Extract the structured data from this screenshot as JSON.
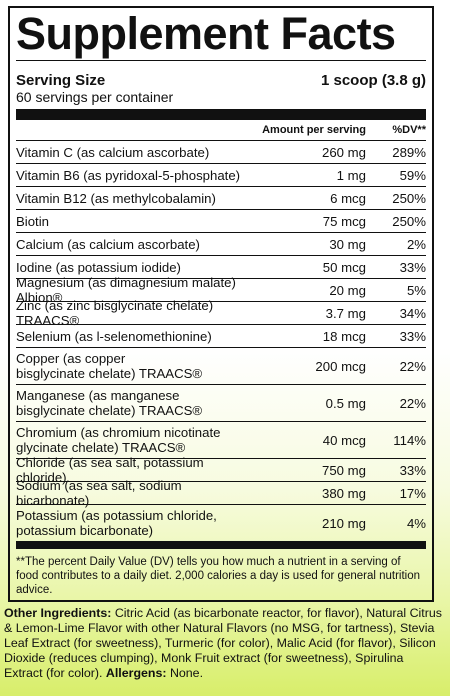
{
  "panel": {
    "title": "Supplement Facts",
    "serving_size_label": "Serving Size",
    "serving_size_value": "1 scoop (3.8 g)",
    "servings_per_container": "60 servings per container",
    "header_amount": "Amount per serving",
    "header_dv": "%DV**",
    "nutrients": [
      {
        "name": "Vitamin C (as calcium ascorbate)",
        "amount": "260 mg",
        "dv": "289%"
      },
      {
        "name": "Vitamin B6 (as pyridoxal-5-phosphate)",
        "amount": "1 mg",
        "dv": "59%"
      },
      {
        "name": "Vitamin B12 (as methylcobalamin)",
        "amount": "6 mcg",
        "dv": "250%"
      },
      {
        "name": "Biotin",
        "amount": "75 mcg",
        "dv": "250%"
      },
      {
        "name": "Calcium (as calcium ascorbate)",
        "amount": "30 mg",
        "dv": "2%"
      },
      {
        "name": "Iodine (as potassium iodide)",
        "amount": "50 mcg",
        "dv": "33%"
      },
      {
        "name": "Magnesium (as dimagnesium malate) Albion®",
        "amount": "20 mg",
        "dv": "5%"
      },
      {
        "name": "Zinc (as zinc bisglycinate chelate) TRAACS®",
        "amount": "3.7 mg",
        "dv": "34%"
      },
      {
        "name": "Selenium (as l-selenomethionine)",
        "amount": "18 mcg",
        "dv": "33%"
      },
      {
        "name": "Copper (as copper\nbisglycinate chelate) TRAACS®",
        "amount": "200 mcg",
        "dv": "22%"
      },
      {
        "name": "Manganese (as manganese\nbisglycinate chelate) TRAACS®",
        "amount": "0.5 mg",
        "dv": "22%"
      },
      {
        "name": "Chromium (as chromium nicotinate\nglycinate chelate) TRAACS®",
        "amount": "40 mcg",
        "dv": "114%"
      },
      {
        "name": "Chloride (as sea salt, potassium chloride)",
        "amount": "750 mg",
        "dv": "33%"
      },
      {
        "name": "Sodium (as sea salt, sodium bicarbonate)",
        "amount": "380 mg",
        "dv": "17%"
      },
      {
        "name": "Potassium (as potassium chloride,\npotassium bicarbonate)",
        "amount": "210 mg",
        "dv": "4%"
      }
    ],
    "footnote": "**The percent Daily Value (DV) tells you how much a nutrient in a serving of food contributes to a daily diet. 2,000 calories a day is used for general nutrition advice."
  },
  "ingredients": {
    "label": "Other Ingredients:",
    "text": " Citric Acid (as bicarbonate reactor, for flavor), Natural Citrus & Lemon-Lime Flavor with other Natural Flavors (no MSG, for tartness), Stevia Leaf Extract (for sweetness), Turmeric (for color), Malic Acid (for flavor), Silicon Dioxide (reduces clumping), Monk Fruit extract (for sweetness), Spirulina Extract (for color). ",
    "allergens_label": "Allergens:",
    "allergens_value": " None."
  }
}
